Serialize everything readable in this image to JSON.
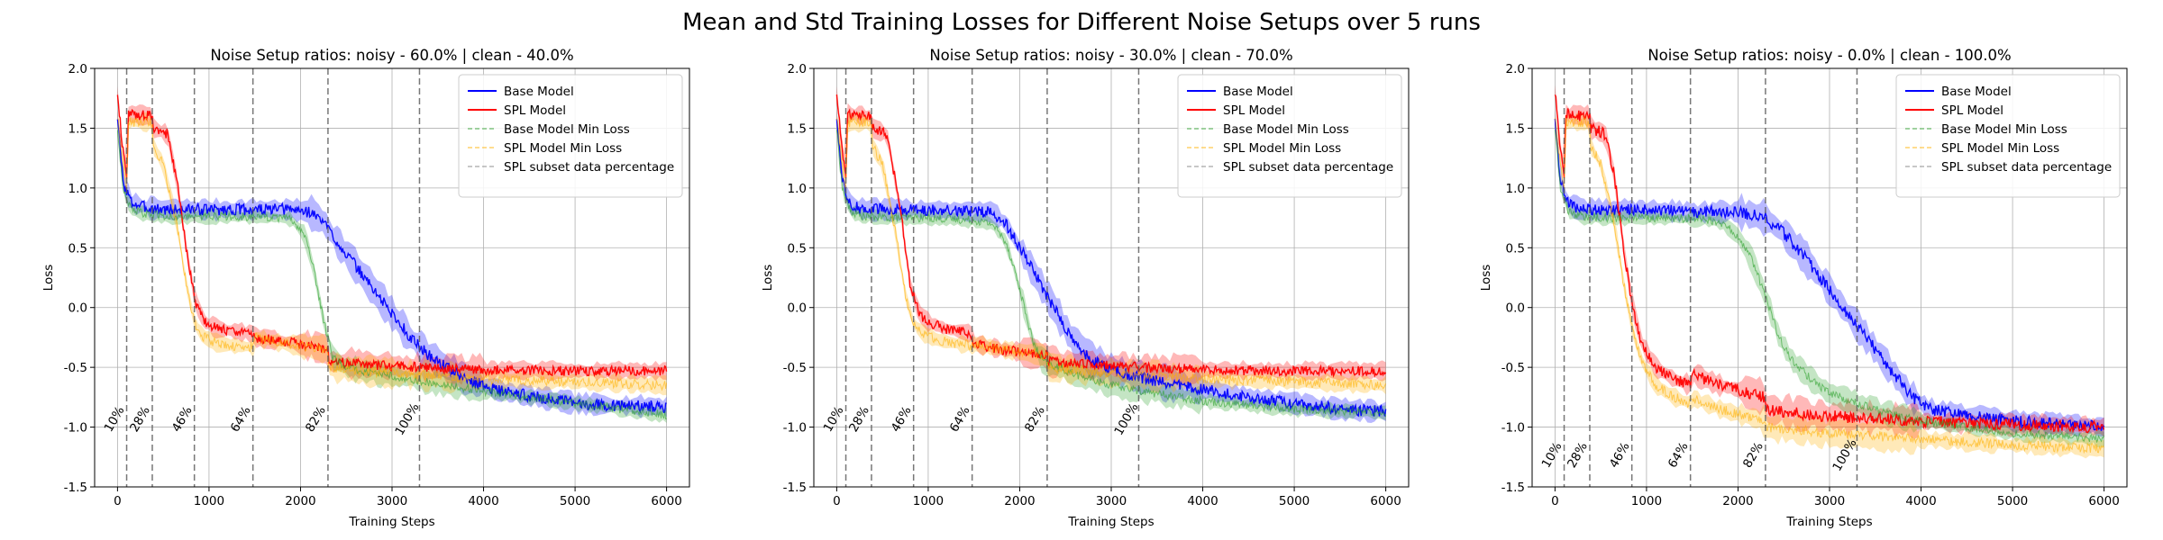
{
  "figure": {
    "suptitle": "Mean and Std Training Losses for Different Noise Setups over 5 runs"
  },
  "chart_data": [
    {
      "type": "line",
      "title": "Noise Setup ratios: noisy - 60.0% |  clean - 40.0%",
      "xlabel": "Training Steps",
      "ylabel": "Loss",
      "xlim": [
        -250,
        6250
      ],
      "ylim": [
        -1.5,
        2.0
      ],
      "xticks": [
        0,
        1000,
        2000,
        3000,
        4000,
        5000,
        6000
      ],
      "yticks": [
        -1.5,
        -1.0,
        -0.5,
        0.0,
        0.5,
        1.0,
        1.5,
        2.0
      ],
      "grid": true,
      "legend_position": "upper right",
      "vlines": [
        100,
        380,
        840,
        1480,
        2300,
        3300
      ],
      "vline_labels": [
        "10%",
        "28%",
        "46%",
        "64%",
        "82%",
        "100%"
      ],
      "vline_label_y": -0.95,
      "series": [
        {
          "name": "Base Model",
          "color": "#0000ff",
          "style": "solid",
          "x": [
            0,
            60,
            150,
            300,
            500,
            800,
            1200,
            1600,
            1900,
            2100,
            2250,
            2400,
            2600,
            2800,
            3000,
            3200,
            3400,
            3600,
            3800,
            4200,
            4600,
            5000,
            5500,
            6000
          ],
          "y": [
            1.6,
            1.05,
            0.88,
            0.84,
            0.82,
            0.82,
            0.82,
            0.82,
            0.82,
            0.8,
            0.72,
            0.55,
            0.35,
            0.15,
            -0.05,
            -0.25,
            -0.4,
            -0.5,
            -0.6,
            -0.7,
            -0.75,
            -0.8,
            -0.82,
            -0.83
          ],
          "std": 0.07
        },
        {
          "name": "SPL Model",
          "color": "#ff0000",
          "style": "solid",
          "x": [
            0,
            60,
            100,
            120,
            380,
            390,
            550,
            650,
            750,
            850,
            950,
            1100,
            1300,
            1480,
            1490,
            1800,
            2100,
            2300,
            2310,
            2800,
            3300,
            4000,
            5000,
            6000
          ],
          "y": [
            1.8,
            1.3,
            1.1,
            1.62,
            1.6,
            1.5,
            1.45,
            1.05,
            0.5,
            0.05,
            -0.12,
            -0.18,
            -0.2,
            -0.22,
            -0.25,
            -0.28,
            -0.32,
            -0.35,
            -0.45,
            -0.48,
            -0.5,
            -0.52,
            -0.53,
            -0.53
          ],
          "std": 0.06
        },
        {
          "name": "Base Model Min Loss",
          "color": "#2ca02c",
          "style": "dashed",
          "x": [
            0,
            60,
            150,
            300,
            600,
            1000,
            1500,
            1900,
            2050,
            2150,
            2250,
            2350,
            2500,
            2800,
            3200,
            3600,
            4000,
            4500,
            5000,
            5500,
            6000
          ],
          "y": [
            1.5,
            1.0,
            0.82,
            0.78,
            0.76,
            0.76,
            0.76,
            0.74,
            0.6,
            0.3,
            -0.1,
            -0.42,
            -0.5,
            -0.55,
            -0.6,
            -0.65,
            -0.7,
            -0.75,
            -0.8,
            -0.85,
            -0.9
          ],
          "std": 0.05
        },
        {
          "name": "SPL Model Min Loss",
          "color": "#ffb000",
          "style": "dashed",
          "x": [
            0,
            60,
            100,
            120,
            380,
            390,
            500,
            650,
            750,
            850,
            950,
            1100,
            1300,
            1480,
            1490,
            1800,
            2100,
            2300,
            2310,
            3000,
            4000,
            5000,
            6000
          ],
          "y": [
            1.6,
            1.2,
            1.0,
            1.55,
            1.55,
            1.35,
            1.2,
            0.7,
            0.2,
            -0.15,
            -0.25,
            -0.3,
            -0.32,
            -0.33,
            -0.25,
            -0.3,
            -0.33,
            -0.35,
            -0.5,
            -0.55,
            -0.6,
            -0.62,
            -0.65
          ],
          "std": 0.06
        },
        {
          "name": "SPL subset data percentage",
          "color": "#808080",
          "style": "dashed",
          "legend_only": true
        }
      ]
    },
    {
      "type": "line",
      "title": "Noise Setup ratios: noisy - 30.0% |  clean - 70.0%",
      "xlabel": "Training Steps",
      "ylabel": "Loss",
      "xlim": [
        -250,
        6250
      ],
      "ylim": [
        -1.5,
        2.0
      ],
      "xticks": [
        0,
        1000,
        2000,
        3000,
        4000,
        5000,
        6000
      ],
      "yticks": [
        -1.5,
        -1.0,
        -0.5,
        0.0,
        0.5,
        1.0,
        1.5,
        2.0
      ],
      "grid": true,
      "legend_position": "upper right",
      "vlines": [
        100,
        380,
        840,
        1480,
        2300,
        3300
      ],
      "vline_labels": [
        "10%",
        "28%",
        "46%",
        "64%",
        "82%",
        "100%"
      ],
      "vline_label_y": -0.95,
      "series": [
        {
          "name": "Base Model",
          "color": "#0000ff",
          "style": "solid",
          "x": [
            0,
            60,
            150,
            300,
            600,
            1000,
            1500,
            1700,
            1850,
            2000,
            2150,
            2300,
            2450,
            2600,
            2800,
            3000,
            3300,
            3600,
            4000,
            4500,
            5000,
            5500,
            6000
          ],
          "y": [
            1.6,
            1.05,
            0.86,
            0.82,
            0.82,
            0.82,
            0.8,
            0.8,
            0.7,
            0.5,
            0.3,
            0.1,
            -0.1,
            -0.3,
            -0.45,
            -0.52,
            -0.58,
            -0.63,
            -0.68,
            -0.75,
            -0.8,
            -0.85,
            -0.87
          ],
          "std": 0.07
        },
        {
          "name": "SPL Model",
          "color": "#ff0000",
          "style": "solid",
          "x": [
            0,
            60,
            100,
            120,
            380,
            390,
            550,
            700,
            800,
            900,
            1000,
            1200,
            1480,
            1490,
            1800,
            2300,
            2310,
            2800,
            3300,
            4000,
            5000,
            6000
          ],
          "y": [
            1.8,
            1.3,
            1.1,
            1.62,
            1.6,
            1.5,
            1.45,
            0.8,
            0.2,
            -0.05,
            -0.12,
            -0.18,
            -0.22,
            -0.3,
            -0.35,
            -0.4,
            -0.45,
            -0.48,
            -0.5,
            -0.52,
            -0.53,
            -0.53
          ],
          "std": 0.06
        },
        {
          "name": "Base Model Min Loss",
          "color": "#2ca02c",
          "style": "dashed",
          "x": [
            0,
            60,
            150,
            300,
            600,
            1000,
            1500,
            1700,
            1850,
            1950,
            2050,
            2150,
            2250,
            2400,
            2700,
            3000,
            3500,
            4000,
            5000,
            6000
          ],
          "y": [
            1.5,
            1.0,
            0.8,
            0.76,
            0.75,
            0.75,
            0.73,
            0.7,
            0.55,
            0.3,
            0.0,
            -0.3,
            -0.45,
            -0.5,
            -0.58,
            -0.65,
            -0.72,
            -0.78,
            -0.85,
            -0.88
          ],
          "std": 0.05
        },
        {
          "name": "SPL Model Min Loss",
          "color": "#ffb000",
          "style": "dashed",
          "x": [
            0,
            60,
            100,
            120,
            380,
            390,
            500,
            650,
            750,
            850,
            950,
            1100,
            1300,
            1480,
            1490,
            1800,
            2300,
            2310,
            3000,
            4000,
            5000,
            6000
          ],
          "y": [
            1.6,
            1.2,
            1.0,
            1.55,
            1.55,
            1.35,
            1.2,
            0.6,
            0.1,
            -0.15,
            -0.22,
            -0.27,
            -0.3,
            -0.32,
            -0.3,
            -0.35,
            -0.4,
            -0.5,
            -0.55,
            -0.6,
            -0.62,
            -0.65
          ],
          "std": 0.06
        },
        {
          "name": "SPL subset data percentage",
          "color": "#808080",
          "style": "dashed",
          "legend_only": true
        }
      ]
    },
    {
      "type": "line",
      "title": "Noise Setup ratios: noisy - 0.0% |  clean - 100.0%",
      "xlabel": "Training Steps",
      "ylabel": "Loss",
      "xlim": [
        -250,
        6250
      ],
      "ylim": [
        -1.5,
        2.0
      ],
      "xticks": [
        0,
        1000,
        2000,
        3000,
        4000,
        5000,
        6000
      ],
      "yticks": [
        -1.5,
        -1.0,
        -0.5,
        0.0,
        0.5,
        1.0,
        1.5,
        2.0
      ],
      "grid": true,
      "legend_position": "upper right",
      "vlines": [
        100,
        380,
        840,
        1480,
        2300,
        3300
      ],
      "vline_labels": [
        "10%",
        "28%",
        "46%",
        "64%",
        "82%",
        "100%"
      ],
      "vline_label_y": -1.25,
      "series": [
        {
          "name": "Base Model",
          "color": "#0000ff",
          "style": "solid",
          "x": [
            0,
            60,
            150,
            300,
            600,
            1000,
            1500,
            2000,
            2300,
            2500,
            2700,
            2900,
            3100,
            3300,
            3500,
            3700,
            3900,
            4100,
            4500,
            5000,
            5500,
            6000
          ],
          "y": [
            1.6,
            1.05,
            0.86,
            0.82,
            0.82,
            0.82,
            0.8,
            0.8,
            0.75,
            0.62,
            0.45,
            0.25,
            0.05,
            -0.15,
            -0.35,
            -0.55,
            -0.75,
            -0.85,
            -0.9,
            -0.95,
            -0.97,
            -1.0
          ],
          "std": 0.07
        },
        {
          "name": "SPL Model",
          "color": "#ff0000",
          "style": "solid",
          "x": [
            0,
            60,
            100,
            120,
            380,
            390,
            550,
            650,
            750,
            850,
            950,
            1100,
            1300,
            1480,
            1490,
            1800,
            2300,
            2310,
            2800,
            3300,
            4000,
            5000,
            6000
          ],
          "y": [
            1.8,
            1.3,
            1.1,
            1.62,
            1.6,
            1.5,
            1.45,
            1.1,
            0.5,
            0.0,
            -0.3,
            -0.5,
            -0.6,
            -0.65,
            -0.55,
            -0.65,
            -0.75,
            -0.85,
            -0.9,
            -0.92,
            -0.95,
            -0.98,
            -1.0
          ],
          "std": 0.07
        },
        {
          "name": "Base Model Min Loss",
          "color": "#2ca02c",
          "style": "dashed",
          "x": [
            0,
            60,
            150,
            300,
            600,
            1000,
            1500,
            1800,
            2000,
            2150,
            2300,
            2450,
            2600,
            2800,
            3000,
            3300,
            3600,
            4000,
            4500,
            5000,
            6000
          ],
          "y": [
            1.5,
            1.0,
            0.8,
            0.76,
            0.75,
            0.75,
            0.74,
            0.72,
            0.6,
            0.4,
            0.1,
            -0.25,
            -0.45,
            -0.6,
            -0.72,
            -0.8,
            -0.88,
            -0.95,
            -1.0,
            -1.05,
            -1.1
          ],
          "std": 0.05
        },
        {
          "name": "SPL Model Min Loss",
          "color": "#ffb000",
          "style": "dashed",
          "x": [
            0,
            60,
            100,
            120,
            380,
            390,
            500,
            650,
            750,
            850,
            950,
            1100,
            1300,
            1480,
            1490,
            1800,
            2300,
            2310,
            3000,
            4000,
            5000,
            6000
          ],
          "y": [
            1.6,
            1.2,
            1.0,
            1.55,
            1.55,
            1.35,
            1.2,
            0.7,
            0.2,
            -0.2,
            -0.45,
            -0.65,
            -0.75,
            -0.8,
            -0.75,
            -0.85,
            -0.95,
            -1.0,
            -1.05,
            -1.1,
            -1.15,
            -1.18
          ],
          "std": 0.06
        },
        {
          "name": "SPL subset data percentage",
          "color": "#808080",
          "style": "dashed",
          "legend_only": true
        }
      ]
    }
  ]
}
